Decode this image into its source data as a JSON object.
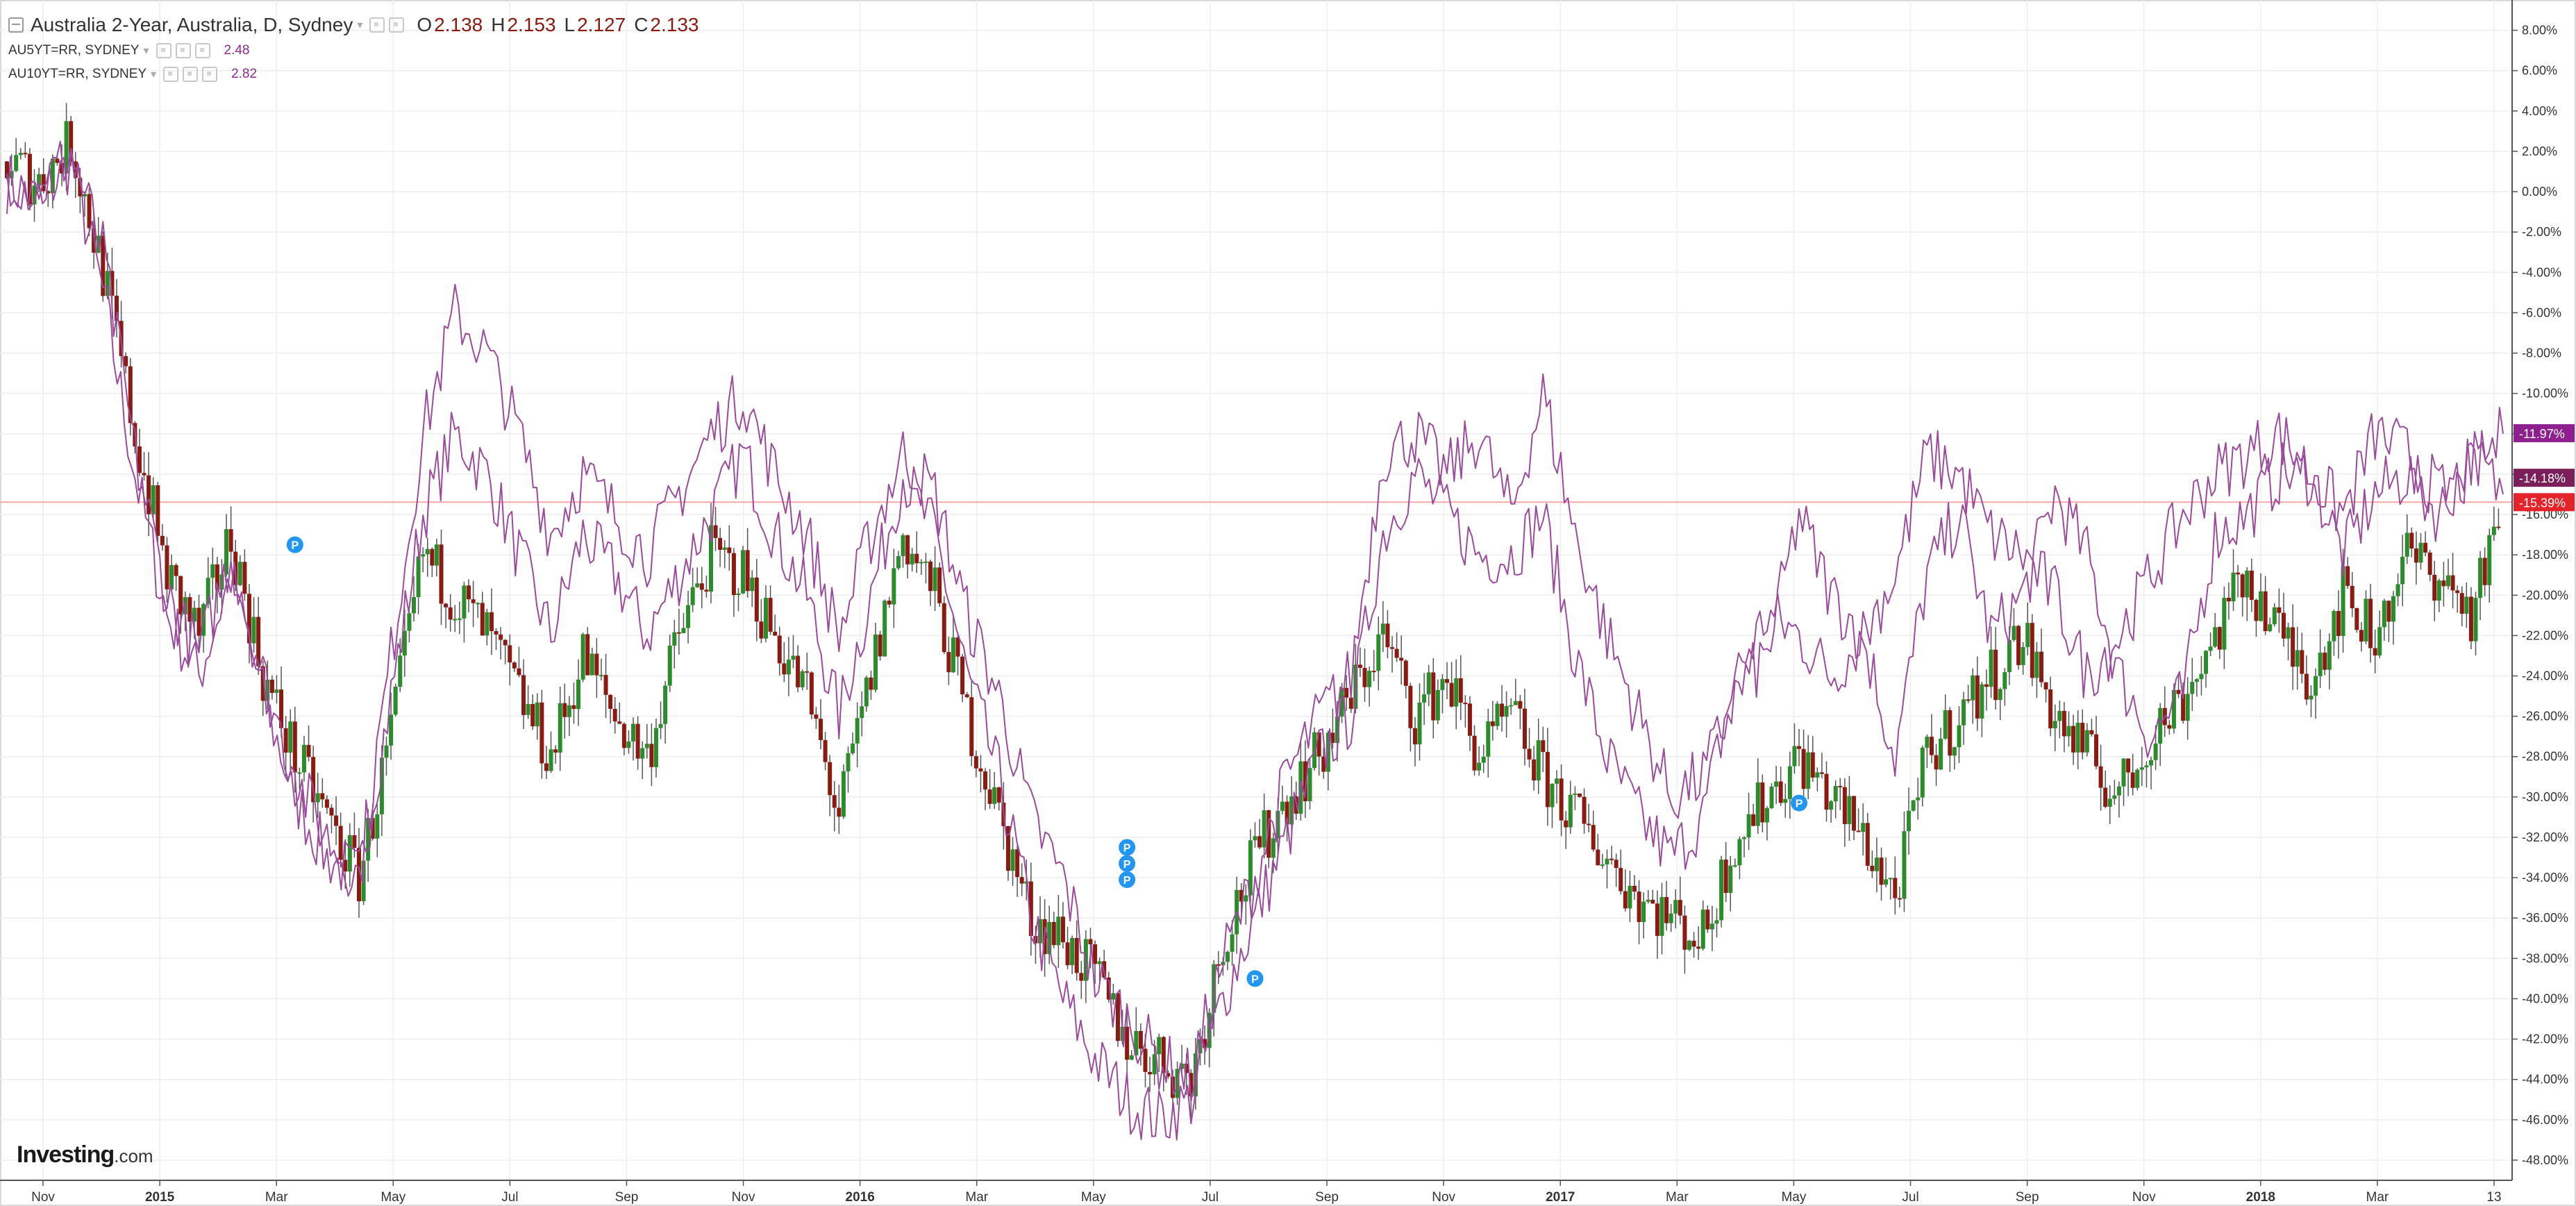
{
  "legend": {
    "main": {
      "title": "Australia 2-Year, Australia, D, Sydney",
      "open_label": "O",
      "open": "2.138",
      "high_label": "H",
      "high": "2.153",
      "low_label": "L",
      "low": "2.127",
      "close_label": "C",
      "close": "2.133"
    },
    "studies": [
      {
        "name": "AU5YT=RR, SYDNEY",
        "value": "2.48"
      },
      {
        "name": "AU10YT=RR, SYDNEY",
        "value": "2.82"
      }
    ]
  },
  "logo": {
    "brand": "Investing",
    "suffix": ".com"
  },
  "colors": {
    "up": "#2a8c2a",
    "down": "#8b1a12",
    "study": "#9c4a9c",
    "tag_primary": "#8e1f8e",
    "tag_secondary": "#7a1f5a",
    "tag_price": "#e3242b",
    "price_line": "#f4a7a7",
    "grid": "#eeeeee",
    "marker": "#2196f3"
  },
  "marker_label": "P",
  "chart_data": {
    "type": "line",
    "y_unit": "percent change",
    "ylim": [
      -49,
      9.5
    ],
    "y_ticks": [
      "8.00%",
      "6.00%",
      "4.00%",
      "2.00%",
      "0.00%",
      "-2.00%",
      "-4.00%",
      "-6.00%",
      "-8.00%",
      "-10.00%",
      "-12.00%",
      "-14.00%",
      "-16.00%",
      "-18.00%",
      "-20.00%",
      "-22.00%",
      "-24.00%",
      "-26.00%",
      "-28.00%",
      "-30.00%",
      "-32.00%",
      "-34.00%",
      "-36.00%",
      "-38.00%",
      "-40.00%",
      "-42.00%",
      "-44.00%",
      "-46.00%",
      "-48.00%"
    ],
    "x_ticks": [
      "Nov",
      "2015",
      "Mar",
      "May",
      "Jul",
      "Sep",
      "Nov",
      "2016",
      "Mar",
      "May",
      "Jul",
      "Sep",
      "Nov",
      "2017",
      "Mar",
      "May",
      "Jul",
      "Sep",
      "Nov",
      "2018",
      "Mar",
      "13"
    ],
    "x_tick_bold": [
      "2015",
      "2016",
      "2017",
      "2018"
    ],
    "last_value_tags": [
      {
        "label": "-11.97%",
        "value": -11.97,
        "role": "primary"
      },
      {
        "label": "-14.18%",
        "value": -14.18,
        "role": "secondary"
      },
      {
        "label": "-15.39%",
        "value": -15.39,
        "role": "price"
      }
    ],
    "price_line_value": -15.39,
    "series": [
      {
        "name": "Australia 2-Year",
        "style": "candlestick",
        "values": [
          1.5,
          0.5,
          2.5,
          -4,
          -12,
          -19,
          -22,
          -17,
          -24,
          -28,
          -31,
          -34,
          -27,
          -18,
          -20,
          -22,
          -25,
          -28,
          -23,
          -26,
          -28,
          -22,
          -18,
          -19,
          -22,
          -25,
          -31,
          -24,
          -17,
          -20,
          -26,
          -31,
          -36,
          -37,
          -39,
          -42,
          -43,
          -44,
          -37,
          -33,
          -30,
          -28,
          -25,
          -22,
          -26,
          -24,
          -28,
          -26,
          -29,
          -31,
          -33,
          -35,
          -36,
          -37,
          -32,
          -30,
          -28,
          -30,
          -32,
          -35,
          -28,
          -26,
          -24,
          -22,
          -26,
          -28,
          -30,
          -27,
          -25,
          -22,
          -19,
          -22,
          -24,
          -20,
          -22,
          -18,
          -19,
          -21,
          -16
        ]
      },
      {
        "name": "AU5YT=RR, SYDNEY",
        "style": "line",
        "values": [
          0.5,
          -0.5,
          1.5,
          -5,
          -14,
          -21,
          -24,
          -19,
          -25,
          -30,
          -33,
          -34,
          -25,
          -16,
          -12,
          -14,
          -18,
          -22,
          -17,
          -19,
          -22,
          -19,
          -16,
          -13,
          -17,
          -20,
          -26,
          -20,
          -14,
          -17,
          -24,
          -29,
          -36,
          -40,
          -43,
          -45,
          -46,
          -45,
          -40,
          -36,
          -32,
          -28,
          -26,
          -17,
          -14,
          -16,
          -18,
          -18,
          -16,
          -23,
          -28,
          -31,
          -33,
          -31,
          -24,
          -21,
          -22,
          -24,
          -22,
          -28,
          -19,
          -16,
          -22,
          -20,
          -15,
          -18,
          -24,
          -27,
          -25,
          -17,
          -16,
          -14,
          -14,
          -18,
          -15,
          -14,
          -16,
          -13,
          -15
        ]
      },
      {
        "name": "AU10YT=RR, SYDNEY",
        "style": "line",
        "values": [
          1,
          0,
          2,
          -3,
          -13,
          -20,
          -23,
          -18,
          -24,
          -29,
          -32,
          -34,
          -23,
          -12,
          -6,
          -8,
          -12,
          -17,
          -14,
          -16,
          -18,
          -15,
          -12,
          -10,
          -14,
          -17,
          -22,
          -17,
          -13,
          -15,
          -21,
          -25,
          -31,
          -34,
          -39,
          -41,
          -43,
          -44,
          -38,
          -34,
          -29,
          -26,
          -24,
          -13,
          -12,
          -14,
          -12,
          -16,
          -10,
          -17,
          -22,
          -26,
          -30,
          -29,
          -25,
          -23,
          -16,
          -20,
          -22,
          -19,
          -13,
          -14,
          -17,
          -18,
          -20,
          -24,
          -22,
          -19,
          -16,
          -14,
          -13,
          -12,
          -14,
          -16,
          -12,
          -13,
          -15,
          -14,
          -12
        ]
      }
    ],
    "markers": [
      {
        "series_index": 0,
        "index": 9,
        "value": -17.5
      },
      {
        "series_index": 0,
        "index": 35,
        "value": -32.5
      },
      {
        "series_index": 0,
        "index": 35,
        "value": -33.3
      },
      {
        "series_index": 0,
        "index": 35,
        "value": -34.1
      },
      {
        "series_index": 0,
        "index": 39,
        "value": -39.0
      },
      {
        "series_index": 0,
        "index": 56,
        "value": -30.3
      }
    ]
  }
}
